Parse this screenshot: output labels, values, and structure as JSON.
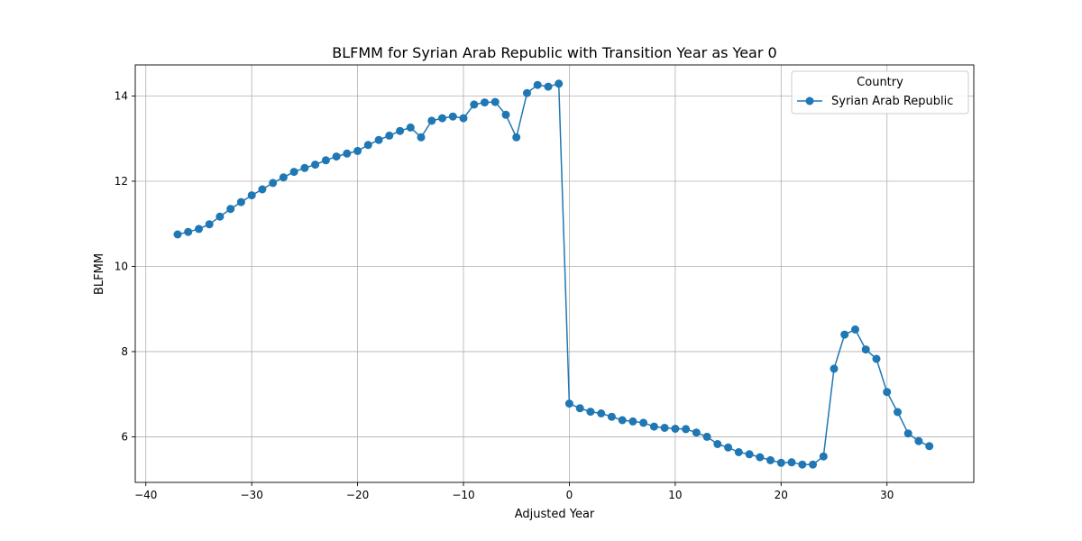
{
  "chart_data": {
    "type": "line",
    "title": "BLFMM for Syrian Arab Republic with Transition Year as Year 0",
    "xlabel": "Adjusted Year",
    "ylabel": "BLFMM",
    "xlim": [
      -41,
      38.2
    ],
    "ylim": [
      4.93,
      14.73
    ],
    "xticks": [
      -40,
      -30,
      -20,
      -10,
      0,
      10,
      20,
      30
    ],
    "xtick_labels": [
      "−40",
      "−30",
      "−20",
      "−10",
      "0",
      "10",
      "20",
      "30"
    ],
    "yticks": [
      6,
      8,
      10,
      12,
      14
    ],
    "ytick_labels": [
      "6",
      "8",
      "10",
      "12",
      "14"
    ],
    "grid": true,
    "legend": {
      "title": "Country",
      "placement": "upper right"
    },
    "series": [
      {
        "name": "Syrian Arab Republic",
        "color": "#1f77b4",
        "marker": "circle",
        "x": [
          -37,
          -36,
          -35,
          -34,
          -33,
          -32,
          -31,
          -30,
          -29,
          -28,
          -27,
          -26,
          -25,
          -24,
          -23,
          -22,
          -21,
          -20,
          -19,
          -18,
          -17,
          -16,
          -15,
          -14,
          -13,
          -12,
          -11,
          -10,
          -9,
          -8,
          -7,
          -6,
          -5,
          -4,
          -3,
          -2,
          -1,
          0,
          1,
          2,
          3,
          4,
          5,
          6,
          7,
          8,
          9,
          10,
          11,
          12,
          13,
          14,
          15,
          16,
          17,
          18,
          19,
          20,
          21,
          22,
          23,
          24,
          25,
          26,
          27,
          28,
          29,
          30,
          31,
          32,
          33,
          34
        ],
        "y": [
          10.75,
          10.81,
          10.88,
          10.99,
          11.17,
          11.35,
          11.51,
          11.67,
          11.81,
          11.96,
          12.09,
          12.22,
          12.31,
          12.39,
          12.49,
          12.58,
          12.65,
          12.71,
          12.85,
          12.97,
          13.07,
          13.18,
          13.26,
          13.03,
          13.42,
          13.48,
          13.52,
          13.48,
          13.8,
          13.85,
          13.86,
          13.56,
          13.03,
          14.07,
          14.26,
          14.22,
          14.29,
          6.78,
          6.67,
          6.59,
          6.55,
          6.47,
          6.39,
          6.36,
          6.33,
          6.24,
          6.21,
          6.19,
          6.18,
          6.1,
          6.0,
          5.83,
          5.75,
          5.64,
          5.59,
          5.52,
          5.45,
          5.39,
          5.4,
          5.35,
          5.35,
          5.54,
          7.6,
          8.4,
          8.52,
          8.05,
          7.83,
          7.05,
          6.58,
          6.08,
          5.9,
          5.78
        ]
      }
    ]
  }
}
